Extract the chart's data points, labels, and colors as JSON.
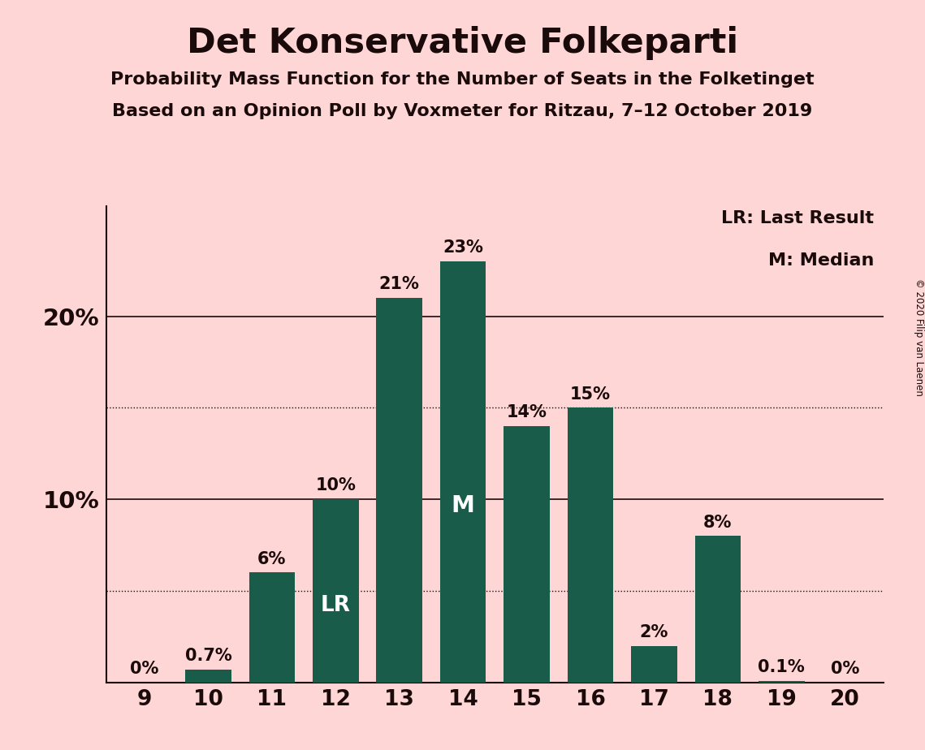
{
  "title": "Det Konservative Folkeparti",
  "subtitle1": "Probability Mass Function for the Number of Seats in the Folketinget",
  "subtitle2": "Based on an Opinion Poll by Voxmeter for Ritzau, 7–12 October 2019",
  "copyright": "© 2020 Filip van Laenen",
  "categories": [
    9,
    10,
    11,
    12,
    13,
    14,
    15,
    16,
    17,
    18,
    19,
    20
  ],
  "values": [
    0.0,
    0.7,
    6.0,
    10.0,
    21.0,
    23.0,
    14.0,
    15.0,
    2.0,
    8.0,
    0.1,
    0.0
  ],
  "bar_labels": [
    "0%",
    "0.7%",
    "6%",
    "10%",
    "21%",
    "23%",
    "14%",
    "15%",
    "2%",
    "8%",
    "0.1%",
    "0%"
  ],
  "bar_color": "#1a5c4a",
  "background_color": "#ffd6d6",
  "text_color": "#1a0a0a",
  "ylim": [
    0,
    26
  ],
  "solid_gridlines": [
    10,
    20
  ],
  "dotted_gridlines": [
    5,
    15
  ],
  "lr_bar_index": 3,
  "median_bar_index": 5,
  "lr_label": "LR",
  "median_label": "M",
  "legend_lr": "LR: Last Result",
  "legend_m": "M: Median",
  "bar_width": 0.72
}
